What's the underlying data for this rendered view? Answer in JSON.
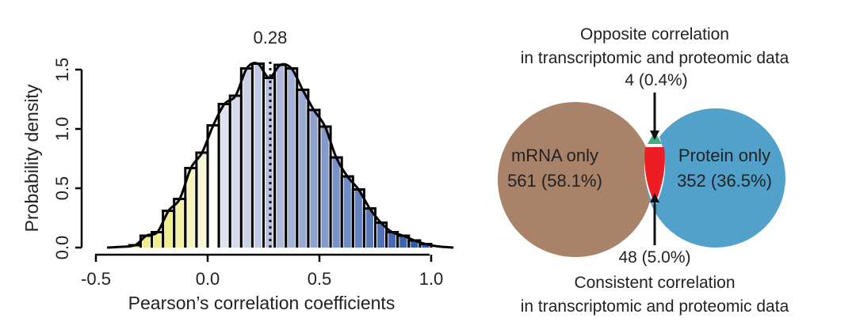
{
  "chart_data": [
    {
      "type": "bar",
      "subtype": "histogram-with-density",
      "title": "",
      "xlabel": "Pearson’s correlation coefficients",
      "ylabel": "Probability density",
      "xlim": [
        -0.55,
        1.1
      ],
      "ylim": [
        0,
        1.5
      ],
      "xticks": [
        "-0.5",
        "0.0",
        "0.5",
        "1.0"
      ],
      "xtick_values": [
        -0.5,
        0,
        0.5,
        1.0
      ],
      "yticks": [
        "0.0",
        "0.5",
        "1.0",
        "1.5"
      ],
      "ytick_values": [
        0,
        0.5,
        1.0,
        1.5
      ],
      "bin_width": 0.05,
      "bin_starts": [
        -0.35,
        -0.3,
        -0.25,
        -0.2,
        -0.15,
        -0.1,
        -0.05,
        0.0,
        0.05,
        0.1,
        0.15,
        0.2,
        0.25,
        0.3,
        0.35,
        0.4,
        0.45,
        0.5,
        0.55,
        0.6,
        0.65,
        0.7,
        0.75,
        0.8,
        0.85,
        0.9,
        0.95
      ],
      "values": [
        0.02,
        0.1,
        0.13,
        0.31,
        0.41,
        0.67,
        0.8,
        1.03,
        1.21,
        1.28,
        1.51,
        1.55,
        1.43,
        1.54,
        1.51,
        1.33,
        1.16,
        1.02,
        0.76,
        0.6,
        0.49,
        0.33,
        0.21,
        0.13,
        0.1,
        0.06,
        0.03
      ],
      "median_line": {
        "value": 0.28,
        "label": "0.28"
      },
      "colors": {
        "negative": "#f0ec90",
        "zero": "#ffffff",
        "positive_light": "#e4e6f3",
        "positive_dark": "#2f56a6",
        "outline": "#000000"
      }
    },
    {
      "type": "venn",
      "sets": [
        {
          "name": "mRNA only",
          "count_label": "561 (58.1%)",
          "count": 561,
          "percent": 58.1,
          "color": "#a9826a"
        },
        {
          "name": "Protein only",
          "count_label": "352 (36.5%)",
          "count": 352,
          "percent": 36.5,
          "color": "#52a1cb"
        }
      ],
      "overlap": [
        {
          "label": "4 (0.4%)",
          "count": 4,
          "percent": 0.4,
          "color": "#3fae7c",
          "caption_line1": "Opposite correlation",
          "caption_line2": "in transcriptomic and proteomic data"
        },
        {
          "label": "48 (5.0%)",
          "count": 48,
          "percent": 5.0,
          "color": "#ee1c25",
          "caption_line1": "Consistent correlation",
          "caption_line2": "in transcriptomic and proteomic data"
        }
      ]
    }
  ]
}
